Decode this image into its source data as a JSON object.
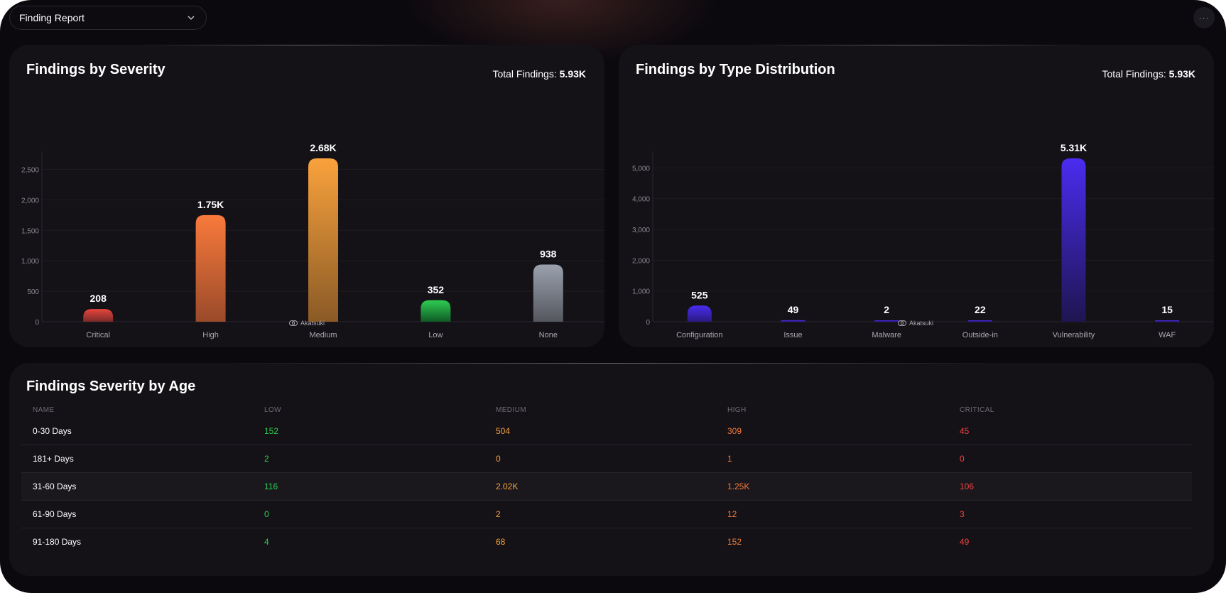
{
  "header": {
    "report_select": "Finding Report",
    "more_label": "···"
  },
  "severity_card": {
    "title": "Findings by Severity",
    "total_label": "Total Findings:",
    "total_value": "5.93K",
    "brand": "Akatsuki"
  },
  "type_card": {
    "title": "Findings by Type Distribution",
    "total_label": "Total Findings:",
    "total_value": "5.93K",
    "brand": "Akatsuki"
  },
  "age_table": {
    "title": "Findings Severity by Age",
    "columns": [
      "NAME",
      "LOW",
      "MEDIUM",
      "HIGH",
      "CRITICAL"
    ],
    "rows": [
      {
        "name": "0-30 Days",
        "low": "152",
        "medium": "504",
        "high": "309",
        "critical": "45"
      },
      {
        "name": "181+ Days",
        "low": "2",
        "medium": "0",
        "high": "1",
        "critical": "0"
      },
      {
        "name": "31-60 Days",
        "low": "116",
        "medium": "2.02K",
        "high": "1.25K",
        "critical": "106"
      },
      {
        "name": "61-90 Days",
        "low": "0",
        "medium": "2",
        "high": "12",
        "critical": "3"
      },
      {
        "name": "91-180 Days",
        "low": "4",
        "medium": "68",
        "high": "152",
        "critical": "49"
      }
    ]
  },
  "chart_data": [
    {
      "type": "bar",
      "title": "Findings by Severity",
      "categories": [
        "Critical",
        "High",
        "Medium",
        "Low",
        "None"
      ],
      "values": [
        208,
        1750,
        2680,
        352,
        938
      ],
      "value_labels": [
        "208",
        "1.75K",
        "2.68K",
        "352",
        "938"
      ],
      "yticks": [
        0,
        500,
        1000,
        1500,
        2000,
        2500
      ],
      "ytick_labels": [
        "0",
        "500",
        "1,000",
        "1,500",
        "2,000",
        "2,500"
      ],
      "ylim": [
        0,
        2680
      ],
      "colors": [
        [
          "#e8453c",
          "#7a2a2a"
        ],
        [
          "#f97a3c",
          "#9a4a2a"
        ],
        [
          "#f9a23c",
          "#8a5a26"
        ],
        [
          "#2ecc52",
          "#0f5a25"
        ],
        [
          "#9aa1ad",
          "#55575f"
        ]
      ],
      "grid": true
    },
    {
      "type": "bar",
      "title": "Findings by Type Distribution",
      "categories": [
        "Configuration",
        "Issue",
        "Malware",
        "Outside-in",
        "Vulnerability",
        "WAF"
      ],
      "values": [
        525,
        49,
        2,
        22,
        5310,
        15
      ],
      "value_labels": [
        "525",
        "49",
        "2",
        "22",
        "5.31K",
        "15"
      ],
      "yticks": [
        0,
        1000,
        2000,
        3000,
        4000,
        5000
      ],
      "ytick_labels": [
        "0",
        "1,000",
        "2,000",
        "3,000",
        "4,000",
        "5,000"
      ],
      "ylim": [
        0,
        5310
      ],
      "colors": [
        [
          "#4a2cf0",
          "#2a1a80"
        ],
        [
          "#4a2cf0",
          "#2a1a80"
        ],
        [
          "#4a2cf0",
          "#2a1a80"
        ],
        [
          "#4a2cf0",
          "#2a1a80"
        ],
        [
          "#4a2cf0",
          "#1e1550"
        ],
        [
          "#4a2cf0",
          "#2a1a80"
        ]
      ],
      "grid": true
    }
  ]
}
